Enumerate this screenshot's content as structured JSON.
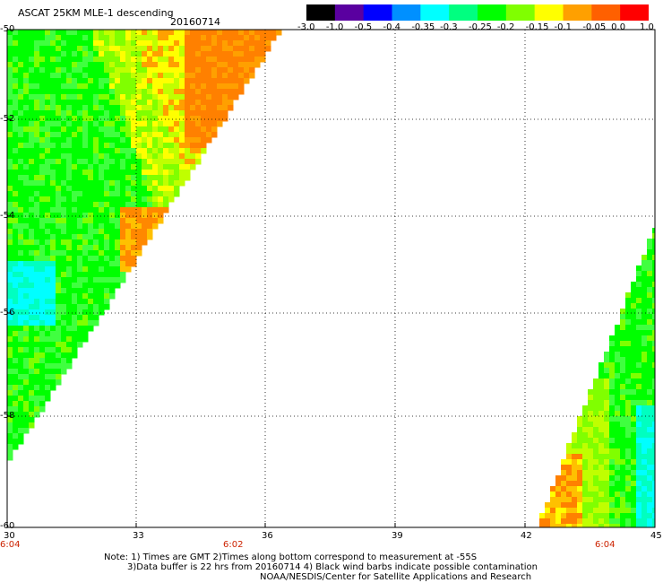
{
  "header": {
    "title": "ASCAT 25KM MLE-1 descending",
    "date": "20160714"
  },
  "colorbar": {
    "labels": [
      "-3.0",
      "-1.0",
      "-0.5",
      "-0.4",
      "-0.35",
      "-0.3",
      "-0.25",
      "-0.2",
      "-0.15",
      "-0.1",
      "-0.05",
      "0.0",
      "1.0"
    ],
    "colors": [
      "#000000",
      "#5a00a0",
      "#0000ff",
      "#0090ff",
      "#00ffff",
      "#00ff80",
      "#00ff00",
      "#80ff00",
      "#ffff00",
      "#ffa000",
      "#ff6000",
      "#ff0000"
    ]
  },
  "axes": {
    "lat_labels": [
      "-50",
      "-52",
      "-54",
      "-56",
      "-58",
      "-60"
    ],
    "lon_labels": [
      "30",
      "33",
      "36",
      "39",
      "42",
      "45"
    ],
    "lat_range": [
      -60,
      -50
    ],
    "lon_range": [
      30,
      45
    ]
  },
  "times": {
    "left": "6:04",
    "middle": "6:02",
    "right": "6:04"
  },
  "notes": {
    "line1": "Note: 1) Times are GMT 2)Times along bottom correspond to measurement at -55S",
    "line2": "3)Data buffer is 22 hrs from 20160714 4) Black wind barbs indicate possible contamination",
    "line3": "NOAA/NESDIS/Center for Satellite Applications and Research"
  }
}
